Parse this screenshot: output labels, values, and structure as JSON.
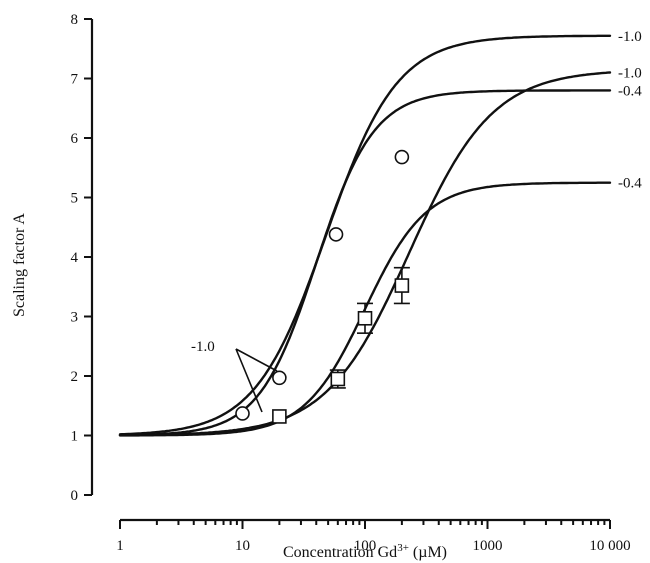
{
  "chart_data": {
    "type": "line",
    "xlabel_main": "Concentration Gd",
    "xlabel_sup": "3+",
    "xlabel_unit": " (µM)",
    "ylabel": "Scaling factor A",
    "xscale": "log",
    "xlim": [
      1,
      10000
    ],
    "ylim": [
      0,
      8
    ],
    "x_ticks": [
      1,
      10,
      100,
      1000,
      10000
    ],
    "x_tick_labels": [
      "1",
      "10",
      "100",
      "1000",
      "10 000"
    ],
    "y_ticks": [
      0,
      1,
      2,
      3,
      4,
      5,
      6,
      7,
      8
    ],
    "y_tick_labels": [
      "0",
      "1",
      "2",
      "3",
      "4",
      "5",
      "6",
      "7",
      "8"
    ],
    "grid": false,
    "curves": [
      {
        "label": "-1.0",
        "amax": 7.72,
        "ec50": 48,
        "n": 1.5
      },
      {
        "label": "-0.4",
        "amax": 6.8,
        "ec50": 40,
        "n": 1.85
      },
      {
        "label": "-1.0",
        "amax": 7.15,
        "ec50": 230,
        "n": 1.28
      },
      {
        "label": "-0.4",
        "amax": 5.25,
        "ec50": 100,
        "n": 1.75
      }
    ],
    "circle_points": [
      {
        "x": 10,
        "y": 1.37
      },
      {
        "x": 20,
        "y": 1.97
      },
      {
        "x": 58,
        "y": 4.38
      },
      {
        "x": 200,
        "y": 5.68
      }
    ],
    "square_points": [
      {
        "x": 20,
        "y": 1.32,
        "err": 0
      },
      {
        "x": 60,
        "y": 1.95,
        "err": 0.15
      },
      {
        "x": 100,
        "y": 2.97,
        "err": 0.25
      },
      {
        "x": 200,
        "y": 3.52,
        "err": 0.3
      }
    ],
    "annotation": {
      "text": "-1.0"
    }
  }
}
